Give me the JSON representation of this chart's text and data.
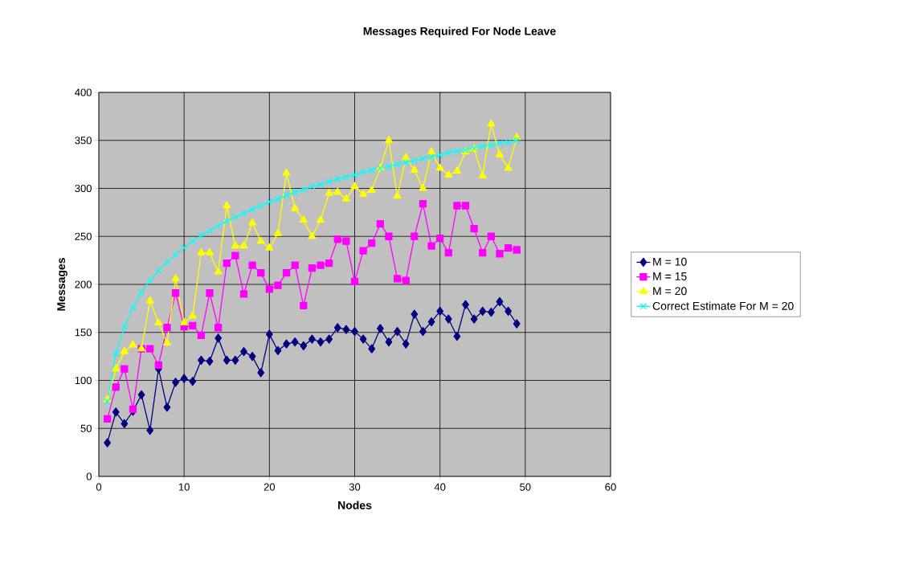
{
  "chart_data": {
    "type": "line",
    "title": "Messages Required For Node Leave",
    "xlabel": "Nodes",
    "ylabel": "Messages",
    "x": [
      1,
      2,
      3,
      4,
      5,
      6,
      7,
      8,
      9,
      10,
      11,
      12,
      13,
      14,
      15,
      16,
      17,
      18,
      19,
      20,
      21,
      22,
      23,
      24,
      25,
      26,
      27,
      28,
      29,
      30,
      31,
      32,
      33,
      34,
      35,
      36,
      37,
      38,
      39,
      40,
      41,
      42,
      43,
      44,
      45,
      46,
      47,
      48,
      49
    ],
    "xlim": [
      0,
      60
    ],
    "xticks": [
      0,
      10,
      20,
      30,
      40,
      50,
      60
    ],
    "ylim": [
      0,
      400
    ],
    "yticks": [
      0,
      50,
      100,
      150,
      200,
      250,
      300,
      350,
      400
    ],
    "grid": true,
    "legend": "right",
    "series": [
      {
        "name": "M = 10",
        "color": "#000080",
        "marker": "diamond",
        "values": [
          35,
          67,
          55,
          68,
          85,
          48,
          112,
          72,
          98,
          102,
          99,
          121,
          120,
          144,
          121,
          121,
          130,
          125,
          108,
          148,
          131,
          138,
          140,
          136,
          143,
          140,
          143,
          155,
          153,
          151,
          143,
          133,
          154,
          140,
          151,
          138,
          169,
          151,
          161,
          172,
          164,
          146,
          179,
          164,
          172,
          171,
          182,
          172,
          159
        ]
      },
      {
        "name": "M = 15",
        "color": "#ff00ff",
        "marker": "square",
        "values": [
          60,
          93,
          112,
          70,
          133,
          133,
          116,
          155,
          191,
          156,
          157,
          147,
          191,
          155,
          222,
          230,
          190,
          220,
          212,
          195,
          199,
          212,
          220,
          178,
          217,
          220,
          222,
          247,
          245,
          203,
          235,
          243,
          263,
          250,
          206,
          204,
          250,
          284,
          240,
          248,
          233,
          282,
          282,
          258,
          233,
          250,
          232,
          238,
          236
        ]
      },
      {
        "name": "M = 20",
        "color": "#ffff00",
        "marker": "triangle",
        "values": [
          80,
          112,
          130,
          137,
          133,
          183,
          160,
          139,
          206,
          160,
          167,
          233,
          233,
          213,
          282,
          240,
          240,
          264,
          245,
          238,
          253,
          316,
          279,
          267,
          250,
          267,
          295,
          296,
          289,
          302,
          294,
          298,
          321,
          350,
          292,
          332,
          319,
          300,
          338,
          321,
          314,
          318,
          338,
          341,
          313,
          367,
          335,
          321,
          353
        ]
      },
      {
        "name": "Correct Estimate For M = 20",
        "color": "#00ffff",
        "marker": "cross",
        "values": [
          78,
          128,
          156,
          176,
          192,
          204,
          214,
          223,
          231,
          238,
          245,
          251,
          256,
          261,
          266,
          270,
          274,
          278,
          282,
          286,
          289,
          293,
          296,
          299,
          302,
          304,
          307,
          310,
          312,
          314,
          317,
          319,
          321,
          323,
          325,
          327,
          329,
          331,
          333,
          335,
          337,
          339,
          340,
          342,
          344,
          345,
          347,
          348,
          350
        ]
      }
    ]
  }
}
